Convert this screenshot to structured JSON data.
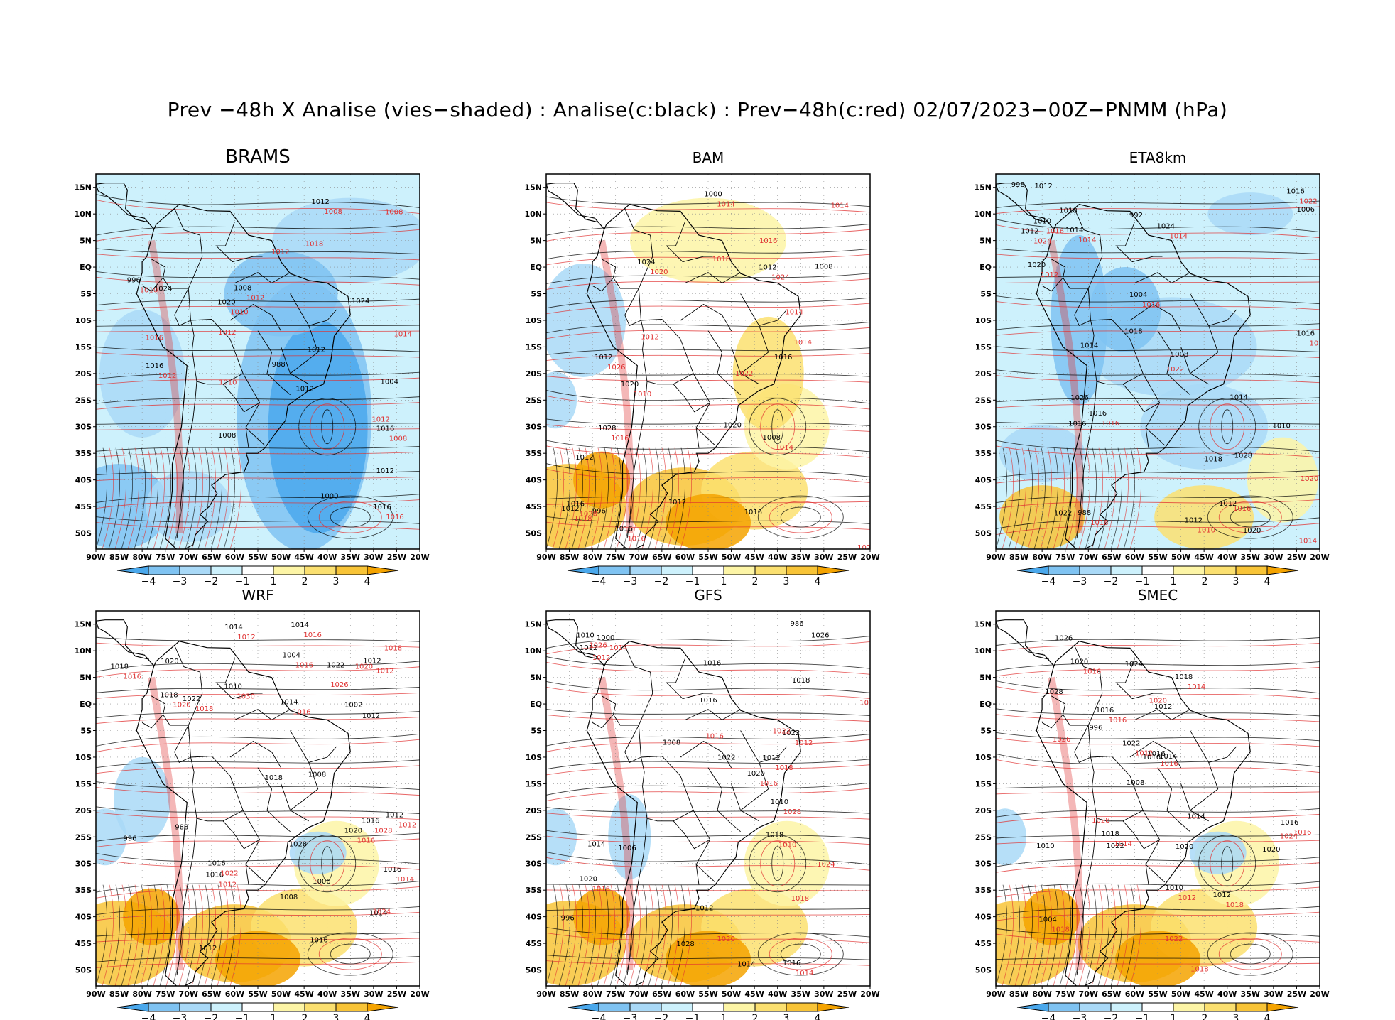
{
  "title": "Prev −48h X Analise (vies−shaded) : Analise(c:black) : Prev−48h(c:red) 02/07/2023−00Z−PNMM (hPa)",
  "lat_ticks": [
    "15N",
    "10N",
    "5N",
    "EQ",
    "5S",
    "10S",
    "15S",
    "20S",
    "25S",
    "30S",
    "35S",
    "40S",
    "45S",
    "50S"
  ],
  "lon_ticks": [
    "90W",
    "85W",
    "80W",
    "75W",
    "70W",
    "65W",
    "60W",
    "55W",
    "50W",
    "45W",
    "40W",
    "35W",
    "30W",
    "25W",
    "20W"
  ],
  "colorbar": {
    "labels": [
      "−4",
      "−3",
      "−2",
      "−1",
      "1",
      "2",
      "3",
      "4"
    ],
    "colors": [
      "#4aa8ec",
      "#7fc3f2",
      "#a9d9f7",
      "#cdf1fc",
      "#ffffff",
      "#fdf5a6",
      "#fbe070",
      "#f8c437",
      "#f4a300"
    ]
  },
  "colors": {
    "analysis_contour": "#000000",
    "forecast_contour": "#e03030",
    "land_neutral": "#ffffff"
  },
  "panels": [
    {
      "name": "BRAMS",
      "bias_tone": "negative",
      "black_labels": [
        "1008",
        "1012",
        "1012",
        "1012",
        "1016",
        "1016",
        "1012",
        "1016",
        "1020",
        "1024",
        "1024",
        "1008",
        "1004",
        "1000",
        "996",
        "988"
      ],
      "red_labels": [
        "1008",
        "1010",
        "1012",
        "1010",
        "1008",
        "1012",
        "1010",
        "1012",
        "1014",
        "1012",
        "1016",
        "1018",
        "1008",
        "1012",
        "1016"
      ]
    },
    {
      "name": "BAM",
      "bias_tone": "positive",
      "black_labels": [
        "1016",
        "1012",
        "1008",
        "1012",
        "1012",
        "1012",
        "1016",
        "1016",
        "1016",
        "1020",
        "1024",
        "1020",
        "1012",
        "1008",
        "1000",
        "996",
        "1028"
      ],
      "red_labels": [
        "1018",
        "1016",
        "1010",
        "1014",
        "1014",
        "1014",
        "1012",
        "1014",
        "1020",
        "1016",
        "1018",
        "1022",
        "1024",
        "1026",
        "1028",
        "1020",
        "1014",
        "1016"
      ]
    },
    {
      "name": "ETA8km",
      "bias_tone": "negative",
      "black_labels": [
        "1010",
        "1016",
        "1014",
        "1012",
        "1012",
        "1010",
        "1012",
        "1012",
        "1014",
        "1016",
        "1014",
        "1016",
        "1018",
        "1018",
        "1020",
        "1020",
        "1022",
        "1024",
        "1026",
        "1018",
        "1016",
        "1008",
        "1006",
        "1004",
        "998",
        "992",
        "988",
        "1028"
      ],
      "red_labels": [
        "1016",
        "1014",
        "1014",
        "1012",
        "1014",
        "1016",
        "1016",
        "1018",
        "1020",
        "1022",
        "1016",
        "1014",
        "1022",
        "1024",
        "1010"
      ]
    },
    {
      "name": "WRF",
      "bias_tone": "mixed",
      "black_labels": [
        "1018",
        "1016",
        "1012",
        "1008",
        "1010",
        "1014",
        "1014",
        "1016",
        "1012",
        "1012",
        "1018",
        "1014",
        "1016",
        "1018",
        "1016",
        "1020",
        "1014",
        "1020",
        "1022",
        "1016",
        "1012",
        "1008",
        "1006",
        "1004",
        "996",
        "988",
        "1022",
        "1028",
        "1002"
      ],
      "red_labels": [
        "1016",
        "1012",
        "1012",
        "1014",
        "1016",
        "1012",
        "1016",
        "1018",
        "1018",
        "1020",
        "1024",
        "1026",
        "1028",
        "1030",
        "1022",
        "1016",
        "1020",
        "1016",
        "1012"
      ]
    },
    {
      "name": "GFS",
      "bias_tone": "positive",
      "black_labels": [
        "1016",
        "1010",
        "1014",
        "1012",
        "1010",
        "1012",
        "1014",
        "1016",
        "1018",
        "1018",
        "1020",
        "1020",
        "1022",
        "1016",
        "1012",
        "1008",
        "1006",
        "1000",
        "996",
        "1026",
        "1022",
        "1028",
        "986"
      ],
      "red_labels": [
        "1018",
        "1010",
        "1016",
        "1012",
        "1014",
        "1012",
        "1016",
        "1018",
        "1016",
        "1020",
        "1022",
        "1024",
        "1026",
        "1028",
        "1014",
        "1016"
      ]
    },
    {
      "name": "SMEC",
      "bias_tone": "positive",
      "black_labels": [
        "1016",
        "1010",
        "1014",
        "1012",
        "1012",
        "1016",
        "1014",
        "1016",
        "1018",
        "1020",
        "1018",
        "1020",
        "1022",
        "1020",
        "1022",
        "1024",
        "1026",
        "1016",
        "1010",
        "1008",
        "1004",
        "996",
        "1028"
      ],
      "red_labels": [
        "1016",
        "1014",
        "1016",
        "1012",
        "1016",
        "1018",
        "1020",
        "1022",
        "1024",
        "1026",
        "1028",
        "1018",
        "1012",
        "1018",
        "1016",
        "1014"
      ]
    }
  ]
}
